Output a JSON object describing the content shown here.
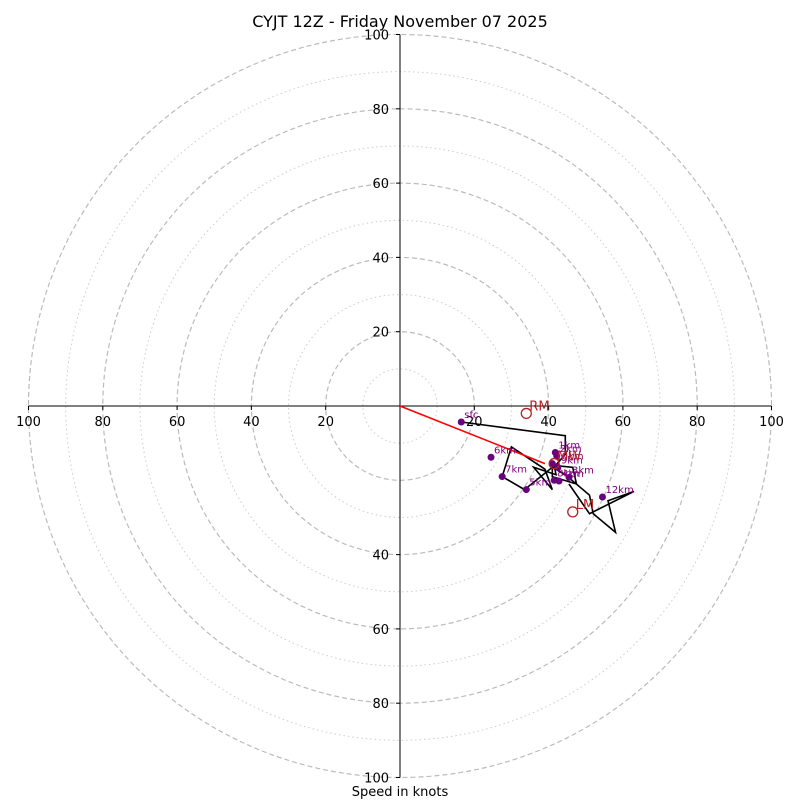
{
  "title": "CYJT 12Z - Friday November 07 2025",
  "xlabel": "Speed in knots",
  "colors": {
    "ring_major": "#bbbbbb",
    "ring_minor": "#cccccc",
    "axis": "#000000",
    "hodograph": "#000000",
    "points": "#6a0080",
    "labels": "#800080",
    "motion": "#b22222",
    "shear": "#ff0000"
  },
  "chart_data": {
    "type": "hodograph",
    "title": "CYJT 12Z - Friday November 07 2025",
    "xlabel": "Speed in knots",
    "range": [
      -100,
      100
    ],
    "major_rings": [
      20,
      40,
      60,
      80,
      100
    ],
    "minor_rings": [
      10,
      30,
      50,
      70,
      90
    ],
    "x_ticks": [
      {
        "value": -100,
        "label": "100"
      },
      {
        "value": -80,
        "label": "80"
      },
      {
        "value": -60,
        "label": "60"
      },
      {
        "value": -40,
        "label": "40"
      },
      {
        "value": -20,
        "label": "20"
      },
      {
        "value": 20,
        "label": "20"
      },
      {
        "value": 40,
        "label": "40"
      },
      {
        "value": 60,
        "label": "60"
      },
      {
        "value": 80,
        "label": "80"
      },
      {
        "value": 100,
        "label": "100"
      }
    ],
    "y_ticks": [
      {
        "value": 100,
        "label": "100"
      },
      {
        "value": 80,
        "label": "80"
      },
      {
        "value": 60,
        "label": "60"
      },
      {
        "value": 40,
        "label": "40"
      },
      {
        "value": 20,
        "label": "20"
      },
      {
        "value": -40,
        "label": "40"
      },
      {
        "value": -60,
        "label": "60"
      },
      {
        "value": -80,
        "label": "80"
      },
      {
        "value": -100,
        "label": "100"
      }
    ],
    "hodograph_path": [
      [
        16.5,
        -4.3
      ],
      [
        44.5,
        -8
      ],
      [
        44.5,
        -13
      ],
      [
        41,
        -17
      ],
      [
        41,
        -19
      ],
      [
        47.5,
        -21
      ],
      [
        46.5,
        -16.5
      ],
      [
        41.5,
        -16
      ],
      [
        42,
        -18.5
      ],
      [
        36,
        -16.5
      ],
      [
        41,
        -22.5
      ],
      [
        39,
        -17
      ],
      [
        30,
        -11
      ],
      [
        27.5,
        -19
      ],
      [
        33.5,
        -22.5
      ],
      [
        41,
        -16.5
      ],
      [
        44.5,
        -18.5
      ],
      [
        51,
        -24
      ],
      [
        52,
        -29
      ],
      [
        58,
        -34
      ],
      [
        56,
        -25.5
      ],
      [
        63,
        -23
      ],
      [
        51,
        -29
      ],
      [
        45.5,
        -21
      ]
    ],
    "points": [
      {
        "label": "sfc",
        "u": 16.5,
        "v": -4.3
      },
      {
        "label": "1km",
        "u": 41.8,
        "v": -12.5
      },
      {
        "label": "2km",
        "u": 42.2,
        "v": -13.5
      },
      {
        "label": "3km",
        "u": 45.5,
        "v": -19.2
      },
      {
        "label": "4km",
        "u": 42.8,
        "v": -20.2
      },
      {
        "label": "5km",
        "u": 34,
        "v": -22.5
      },
      {
        "label": "6km",
        "u": 24.5,
        "v": -13.8
      },
      {
        "label": "7km",
        "u": 27.5,
        "v": -19
      },
      {
        "label": "8km",
        "u": 41.5,
        "v": -20
      },
      {
        "label": "9km",
        "u": 42.5,
        "v": -16.5
      },
      {
        "label": "10km",
        "u": 41,
        "v": -15.5
      },
      {
        "label": "12km",
        "u": 54.5,
        "v": -24.5
      }
    ],
    "storm_motions": [
      {
        "label": "RM",
        "u": 34,
        "v": -2
      },
      {
        "label": "LM",
        "u": 46.5,
        "v": -28.5
      },
      {
        "label": "MW",
        "u": 41.5,
        "v": -15.5
      }
    ],
    "shear_vector": {
      "from": [
        0,
        0
      ],
      "to": [
        39,
        -15.5
      ]
    }
  }
}
